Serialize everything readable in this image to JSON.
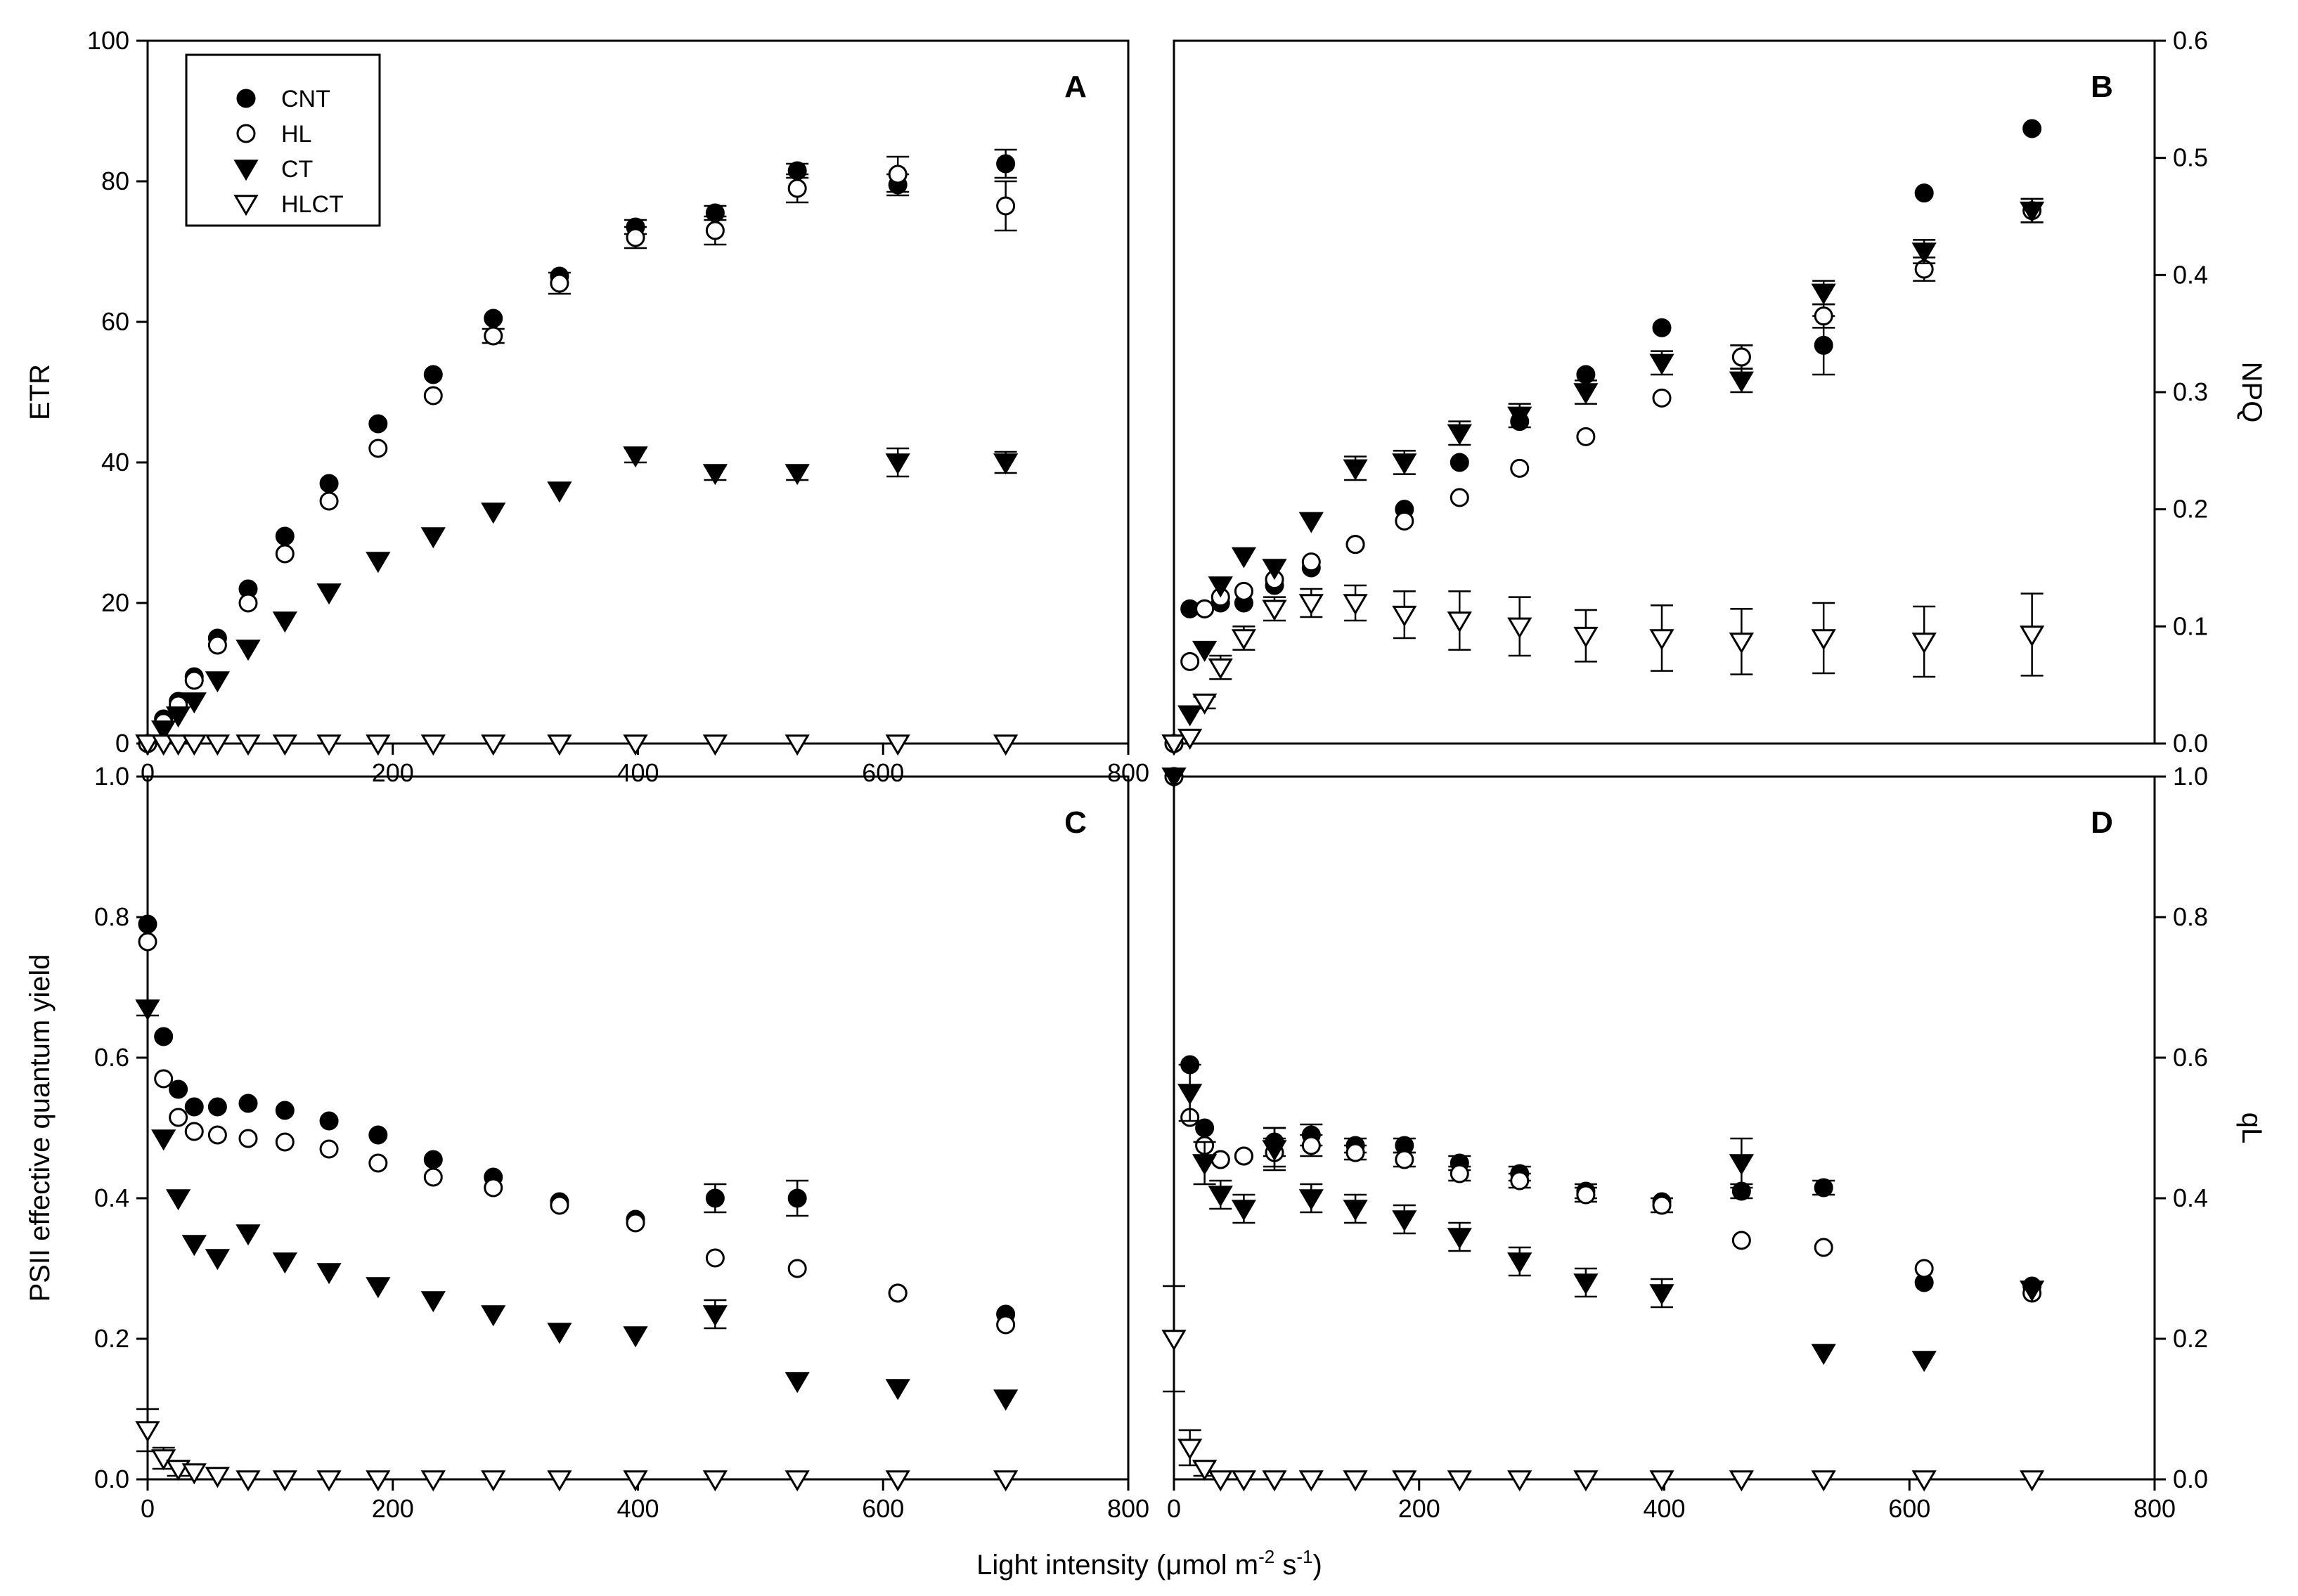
{
  "figure": {
    "xlabel_main": "Light intensity (",
    "xlabel_mu": "μ",
    "xlabel_mol": "mol m",
    "xlabel_sup1": "-2",
    "xlabel_s": " s",
    "xlabel_sup2": "-1",
    "xlabel_close": ")"
  },
  "legend": [
    {
      "name": "CNT",
      "marker": "filled-circle"
    },
    {
      "name": "HL",
      "marker": "open-circle"
    },
    {
      "name": "CT",
      "marker": "filled-triangle-down"
    },
    {
      "name": "HLCT",
      "marker": "open-triangle-down"
    }
  ],
  "chart_data": [
    {
      "panel": "A",
      "type": "scatter",
      "ylabel": "ETR",
      "y_axis_side": "left",
      "xlim": [
        0,
        800
      ],
      "ylim": [
        0,
        100
      ],
      "x_ticks": [
        "0",
        "200",
        "400",
        "600",
        "800"
      ],
      "y_ticks": [
        "0",
        "20",
        "40",
        "60",
        "80",
        "100"
      ],
      "legend_position": "top-left",
      "series": [
        {
          "name": "CNT",
          "x": [
            0,
            13,
            25,
            38,
            57,
            82,
            112,
            148,
            188,
            233,
            282,
            336,
            398,
            463,
            530,
            612,
            700
          ],
          "y": [
            0,
            3.5,
            6,
            9.5,
            15,
            22,
            29.5,
            37,
            45.5,
            52.5,
            60.5,
            66.5,
            73.5,
            75.5,
            81.5,
            79.5,
            82.5
          ],
          "err": [
            0,
            0,
            0,
            0,
            0,
            0,
            0,
            0,
            0,
            0,
            0,
            0,
            1,
            1,
            1,
            1.5,
            2
          ]
        },
        {
          "name": "HL",
          "x": [
            0,
            13,
            25,
            38,
            57,
            82,
            112,
            148,
            188,
            233,
            282,
            336,
            398,
            463,
            530,
            612,
            700
          ],
          "y": [
            0,
            3,
            5.5,
            9,
            14,
            20,
            27,
            34.5,
            42,
            49.5,
            58,
            65.5,
            72,
            73,
            79,
            81,
            76.5
          ],
          "err": [
            0,
            0,
            0,
            0,
            0,
            0,
            0,
            0,
            0,
            0,
            1,
            1.5,
            1.5,
            2,
            2,
            2.5,
            3.5
          ]
        },
        {
          "name": "CT",
          "x": [
            0,
            13,
            25,
            38,
            57,
            82,
            112,
            148,
            188,
            233,
            282,
            336,
            398,
            463,
            530,
            612,
            700
          ],
          "y": [
            0,
            2,
            4,
            6,
            9,
            13.5,
            17.5,
            21.5,
            26,
            29.5,
            33,
            36,
            41,
            38.5,
            38.5,
            40,
            40
          ],
          "err": [
            0,
            0,
            0,
            0,
            0,
            0,
            0,
            0,
            0,
            0,
            0,
            0,
            1,
            1,
            1,
            2,
            1.5
          ]
        },
        {
          "name": "HLCT",
          "x": [
            0,
            13,
            25,
            38,
            57,
            82,
            112,
            148,
            188,
            233,
            282,
            336,
            398,
            463,
            530,
            612,
            700
          ],
          "y": [
            0,
            0,
            0,
            0,
            0,
            0,
            0,
            0,
            0,
            0,
            0,
            0,
            0,
            0,
            0,
            0,
            0
          ],
          "err": [
            0,
            0,
            0,
            0,
            0,
            0,
            0,
            0,
            0,
            0,
            0,
            0,
            0,
            0,
            0,
            0,
            0
          ]
        }
      ]
    },
    {
      "panel": "B",
      "type": "scatter",
      "ylabel": "NPQ",
      "y_axis_side": "right",
      "xlim": [
        0,
        800
      ],
      "ylim": [
        0,
        0.6
      ],
      "x_ticks": [],
      "y_ticks": [
        "0.0",
        "0.1",
        "0.2",
        "0.3",
        "0.4",
        "0.5",
        "0.6"
      ],
      "series": [
        {
          "name": "CNT",
          "x": [
            0,
            13,
            25,
            38,
            57,
            82,
            112,
            148,
            188,
            233,
            282,
            336,
            398,
            463,
            530,
            612,
            700
          ],
          "y": [
            0,
            0.115,
            0.115,
            0.12,
            0.12,
            0.135,
            0.15,
            0.17,
            0.2,
            0.24,
            0.275,
            0.315,
            0.355,
            0.33,
            0.34,
            0.47,
            0.525
          ],
          "err": [
            0,
            0,
            0,
            0,
            0,
            0,
            0,
            0,
            0,
            0,
            0,
            0,
            0,
            0.01,
            0.025,
            0,
            0
          ]
        },
        {
          "name": "HL",
          "x": [
            0,
            13,
            25,
            38,
            57,
            82,
            112,
            148,
            188,
            233,
            282,
            336,
            398,
            463,
            530,
            612,
            700
          ],
          "y": [
            0,
            0.07,
            0.115,
            0.125,
            0.13,
            0.14,
            0.155,
            0.17,
            0.19,
            0.21,
            0.235,
            0.262,
            0.295,
            0.33,
            0.365,
            0.405,
            0.455
          ],
          "err": [
            0,
            0,
            0,
            0,
            0,
            0,
            0,
            0,
            0,
            0,
            0,
            0,
            0,
            0.01,
            0.01,
            0.01,
            0.01
          ]
        },
        {
          "name": "CT",
          "x": [
            0,
            13,
            25,
            38,
            57,
            82,
            112,
            148,
            188,
            233,
            282,
            336,
            398,
            463,
            530,
            612,
            700
          ],
          "y": [
            0,
            0.025,
            0.08,
            0.135,
            0.16,
            0.15,
            0.19,
            0.235,
            0.24,
            0.265,
            0.28,
            0.3,
            0.325,
            0.31,
            0.385,
            0.42,
            0.455
          ],
          "err": [
            0,
            0,
            0,
            0,
            0,
            0,
            0,
            0.01,
            0.01,
            0.01,
            0.01,
            0.01,
            0.01,
            0.01,
            0.01,
            0.01,
            0.01
          ]
        },
        {
          "name": "HLCT",
          "x": [
            0,
            13,
            25,
            38,
            57,
            82,
            112,
            148,
            188,
            233,
            282,
            336,
            398,
            463,
            530,
            612,
            700
          ],
          "y": [
            0,
            0.005,
            0.035,
            0.065,
            0.09,
            0.115,
            0.12,
            0.12,
            0.11,
            0.105,
            0.1,
            0.092,
            0.09,
            0.087,
            0.09,
            0.087,
            0.093
          ],
          "err": [
            0,
            0,
            0.005,
            0.01,
            0.01,
            0.01,
            0.012,
            0.015,
            0.02,
            0.025,
            0.025,
            0.022,
            0.028,
            0.028,
            0.03,
            0.03,
            0.035
          ]
        }
      ]
    },
    {
      "panel": "C",
      "type": "scatter",
      "ylabel": "PSII effective quantum yield",
      "y_axis_side": "left",
      "xlim": [
        0,
        800
      ],
      "ylim": [
        0,
        1.0
      ],
      "x_ticks": [
        "0",
        "200",
        "400",
        "600",
        "800"
      ],
      "y_ticks": [
        "0.0",
        "0.2",
        "0.4",
        "0.6",
        "0.8",
        "1.0"
      ],
      "series": [
        {
          "name": "CNT",
          "x": [
            0,
            13,
            25,
            38,
            57,
            82,
            112,
            148,
            188,
            233,
            282,
            336,
            398,
            463,
            530,
            612,
            700
          ],
          "y": [
            0.79,
            0.63,
            0.555,
            0.53,
            0.53,
            0.535,
            0.525,
            0.51,
            0.49,
            0.455,
            0.43,
            0.395,
            0.37,
            0.4,
            0.4,
            0.265,
            0.235
          ],
          "err": [
            0,
            0,
            0,
            0,
            0,
            0,
            0,
            0,
            0,
            0,
            0,
            0,
            0,
            0.02,
            0.025,
            0,
            0
          ]
        },
        {
          "name": "HL",
          "x": [
            0,
            13,
            25,
            38,
            57,
            82,
            112,
            148,
            188,
            233,
            282,
            336,
            398,
            463,
            530,
            612,
            700
          ],
          "y": [
            0.765,
            0.57,
            0.515,
            0.495,
            0.49,
            0.485,
            0.48,
            0.47,
            0.45,
            0.43,
            0.415,
            0.39,
            0.365,
            0.315,
            0.3,
            0.265,
            0.22
          ],
          "err": [
            0,
            0,
            0,
            0,
            0,
            0,
            0,
            0,
            0,
            0,
            0,
            0,
            0,
            0,
            0,
            0,
            0
          ]
        },
        {
          "name": "CT",
          "x": [
            0,
            13,
            25,
            38,
            57,
            82,
            112,
            148,
            188,
            233,
            282,
            336,
            398,
            463,
            530,
            612,
            700
          ],
          "y": [
            0.67,
            0.485,
            0.4,
            0.335,
            0.315,
            0.35,
            0.31,
            0.295,
            0.275,
            0.255,
            0.235,
            0.21,
            0.205,
            0.235,
            0.14,
            0.13,
            0.115
          ],
          "err": [
            0.01,
            0,
            0,
            0,
            0,
            0,
            0,
            0,
            0,
            0,
            0,
            0,
            0,
            0.02,
            0,
            0,
            0
          ]
        },
        {
          "name": "HLCT",
          "x": [
            0,
            13,
            25,
            38,
            57,
            82,
            112,
            148,
            188,
            233,
            282,
            336,
            398,
            463,
            530,
            612,
            700
          ],
          "y": [
            0.07,
            0.03,
            0.015,
            0.01,
            0.005,
            0,
            0,
            0,
            0,
            0,
            0,
            0,
            0,
            0,
            0,
            0,
            0
          ],
          "err": [
            0.03,
            0.015,
            0.01,
            0,
            0,
            0,
            0,
            0,
            0,
            0,
            0,
            0,
            0,
            0,
            0,
            0,
            0
          ]
        }
      ]
    },
    {
      "panel": "D",
      "type": "scatter",
      "ylabel": "qL",
      "y_axis_side": "right",
      "xlim": [
        0,
        800
      ],
      "ylim": [
        0,
        1.0
      ],
      "x_ticks": [
        "0",
        "200",
        "400",
        "600",
        "800"
      ],
      "y_ticks": [
        "0.0",
        "0.2",
        "0.4",
        "0.6",
        "0.8",
        "1.0"
      ],
      "series": [
        {
          "name": "CNT",
          "x": [
            0,
            13,
            25,
            38,
            57,
            82,
            112,
            148,
            188,
            233,
            282,
            336,
            398,
            463,
            530,
            612,
            700
          ],
          "y": [
            1.0,
            0.59,
            0.5,
            0.455,
            0.46,
            0.48,
            0.49,
            0.475,
            0.475,
            0.45,
            0.435,
            0.41,
            0.395,
            0.41,
            0.415,
            0.28,
            0.275
          ],
          "err": [
            0,
            0,
            0,
            0,
            0,
            0.02,
            0.015,
            0.01,
            0.01,
            0.01,
            0.01,
            0.01,
            0,
            0.01,
            0.01,
            0,
            0
          ]
        },
        {
          "name": "HL",
          "x": [
            0,
            13,
            25,
            38,
            57,
            82,
            112,
            148,
            188,
            233,
            282,
            336,
            398,
            463,
            530,
            612,
            700
          ],
          "y": [
            1.0,
            0.515,
            0.475,
            0.455,
            0.46,
            0.465,
            0.475,
            0.465,
            0.455,
            0.435,
            0.425,
            0.405,
            0.39,
            0.34,
            0.33,
            0.3,
            0.265
          ],
          "err": [
            0,
            0,
            0,
            0,
            0,
            0.02,
            0.015,
            0.01,
            0.01,
            0.01,
            0.01,
            0.01,
            0.01,
            0,
            0,
            0,
            0
          ]
        },
        {
          "name": "CT",
          "x": [
            0,
            13,
            25,
            38,
            57,
            82,
            112,
            148,
            188,
            233,
            282,
            336,
            398,
            463,
            530,
            612,
            700
          ],
          "y": [
            1.0,
            0.55,
            0.45,
            0.405,
            0.385,
            0.47,
            0.4,
            0.385,
            0.37,
            0.345,
            0.31,
            0.28,
            0.265,
            0.45,
            0.18,
            0.17,
            0.27
          ],
          "err": [
            0,
            0.04,
            0.03,
            0.02,
            0.02,
            0.03,
            0.02,
            0.02,
            0.02,
            0.02,
            0.02,
            0.02,
            0.02,
            0.035,
            0,
            0,
            0
          ]
        },
        {
          "name": "HLCT",
          "x": [
            0,
            13,
            25,
            38,
            57,
            82,
            112,
            148,
            188,
            233,
            282,
            336,
            398,
            463,
            530,
            612,
            700
          ],
          "y": [
            0.2,
            0.045,
            0.015,
            0,
            0,
            0,
            0,
            0,
            0,
            0,
            0,
            0,
            0,
            0,
            0,
            0,
            0
          ],
          "err": [
            0.075,
            0.025,
            0.01,
            0,
            0,
            0,
            0,
            0,
            0,
            0,
            0,
            0,
            0,
            0,
            0,
            0,
            0
          ]
        }
      ]
    }
  ]
}
